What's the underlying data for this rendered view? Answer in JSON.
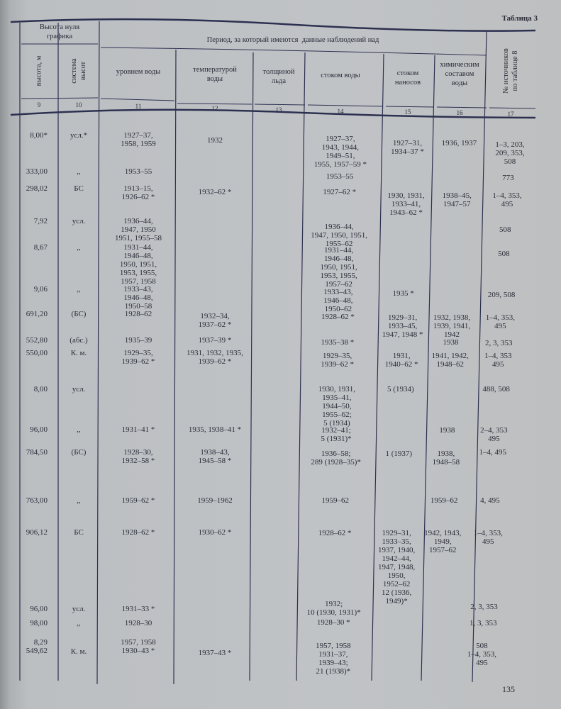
{
  "table_title": "Таблица 3",
  "page_number": "135",
  "header": {
    "group_height": "Высота нуля\nграфика",
    "group_period": "Период, за который имеются  данные наблюдений над",
    "columns": [
      {
        "num": "9",
        "label": "высота, м"
      },
      {
        "num": "10",
        "label": "система\nвысот"
      },
      {
        "num": "11",
        "label": "уровнем воды"
      },
      {
        "num": "12",
        "label": "температурой\nводы"
      },
      {
        "num": "13",
        "label": "толщиной\nльда"
      },
      {
        "num": "14",
        "label": "стоком воды"
      },
      {
        "num": "15",
        "label": "стоком\nнаносов"
      },
      {
        "num": "16",
        "label": "химическим\nсоставом\nводы"
      },
      {
        "num": "17",
        "label": "№ источников\nпо таблице 8"
      }
    ]
  },
  "rows": [
    [
      "8,00*",
      "усл.*",
      "1927–37,\n1958, 1959",
      "1932",
      "",
      "1927–37,\n1943, 1944,\n1949–51,\n1955, 1957–59 *",
      "1927–31,\n1934–37 *",
      "1936, 1937",
      "1–3, 203,\n209, 353,\n508"
    ],
    [
      "333,00",
      ",,",
      "1953–55",
      "",
      "",
      "1953–55",
      "",
      "",
      "773"
    ],
    [
      "298,02",
      "БС",
      "1913–15,\n1926–62 *",
      "1932–62 *",
      "",
      "1927–62 *",
      "1930, 1931,\n1933–41,\n1943–62 *",
      "1938–45,\n1947–57",
      "1–4, 353,\n495"
    ],
    [
      "7,92",
      "усл.",
      "1936–44,\n1947, 1950\n1951, 1955–58",
      "",
      "",
      "1936–44,\n1947, 1950, 1951,\n1955–62",
      "",
      "",
      "508"
    ],
    [
      "8,67",
      ",,",
      "1931–44,\n1946–48,\n1950, 1951,\n1953, 1955,\n1957, 1958",
      "",
      "",
      "1931–44,\n1946–48,\n1950, 1951,\n1953, 1955,\n1957–62",
      "",
      "",
      "508"
    ],
    [
      "9,06",
      ",,",
      "1933–43,\n1946–48,\n1950–58",
      "",
      "",
      "1933–43,\n1946–48,\n1950–62",
      "1935 *",
      "",
      "209, 508"
    ],
    [
      "691,20",
      "(БС)",
      "1928–62",
      "1932–34,\n1937–62 *",
      "",
      "1928–62 *",
      "1929–31,\n1933–45,\n1947, 1948 *",
      "1932, 1938,\n1939, 1941,\n1942",
      "1–4, 353,\n495"
    ],
    [
      "552,80",
      "(абс.)",
      "1935–39",
      "1937–39 *",
      "",
      "1935–38 *",
      "",
      "1938",
      "2, 3, 353"
    ],
    [
      "550,00",
      "К. м.",
      "1929–35,\n1939–62 *",
      "1931, 1932, 1935,\n1939–62 *",
      "",
      "1929–35,\n1939–62 *",
      "1931,\n1940–62 *",
      "1941, 1942,\n1948–62",
      "1–4, 353\n495"
    ],
    [
      "8,00",
      "усл.",
      "",
      "",
      "",
      "1930, 1931,\n1935–41,\n1944–50,\n1955–62;\n5 (1934)",
      "5 (1934)",
      "",
      "488, 508"
    ],
    [
      "96,00",
      ",,",
      "1931–41 *",
      "1935, 1938–41 *",
      "",
      "1932–41;\n5 (1931)*",
      "",
      "1938",
      "2–4, 353\n495"
    ],
    [
      "784,50",
      "(БС)",
      "1928–30,\n1932–58 *",
      "1938–43,\n1945–58 *",
      "",
      "1936–58;\n289 (1928–35)*",
      "1 (1937)",
      "1938,\n1948–58",
      "1–4, 495"
    ],
    [
      "763,00",
      ",,",
      "1959–62 *",
      "1959–1962",
      "",
      "1959–62",
      "",
      "1959–62",
      "4, 495"
    ],
    [
      "906,12",
      "БС",
      "1928–62 *",
      "1930–62 *",
      "",
      "1928–62 *",
      "1929–31,\n1933–35,\n1937, 1940,\n1942–44,\n1947, 1948,\n1950,\n1952–62\n12 (1936,\n1949)*",
      "1942, 1943,\n1949,\n1957–62",
      "1–4, 353,\n495"
    ],
    [
      "96,00",
      "усл.",
      "1931–33 *",
      "",
      "",
      "1932;\n10 (1930, 1931)*",
      "",
      "",
      "2, 3, 353"
    ],
    [
      "98,00",
      ",,",
      "1928–30",
      "",
      "",
      "1928–30 *",
      "",
      "",
      "1, 3, 353"
    ],
    [
      "8,29\n549,62",
      "К. м.",
      "1957, 1958\n1930–43 *",
      "1937–43 *",
      "",
      "1957, 1958\n1931–37,\n1939–43;\n21 (1938)*",
      "",
      "",
      "508\n1–4, 353,\n495"
    ]
  ]
}
